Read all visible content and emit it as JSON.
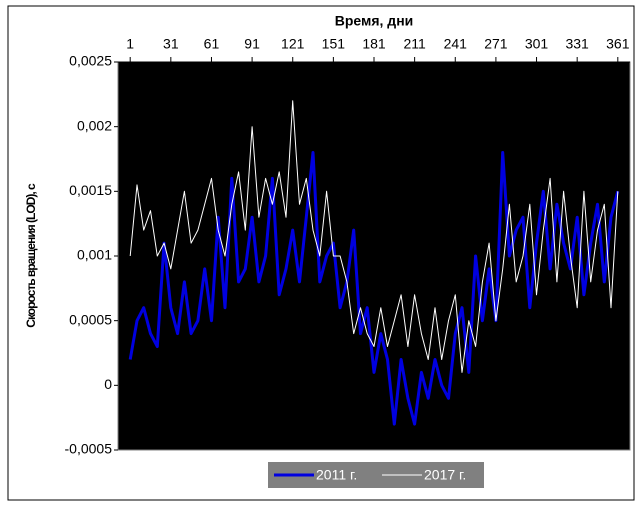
{
  "chart_data": {
    "type": "line",
    "x_label": "Время, дни",
    "y_label": "Скорость вращения (LOD), с",
    "x": [
      1,
      6,
      11,
      16,
      21,
      26,
      31,
      36,
      41,
      46,
      51,
      56,
      61,
      66,
      71,
      76,
      81,
      86,
      91,
      96,
      101,
      106,
      111,
      116,
      121,
      126,
      131,
      136,
      141,
      146,
      151,
      156,
      161,
      166,
      171,
      176,
      181,
      186,
      191,
      196,
      201,
      206,
      211,
      216,
      221,
      226,
      231,
      236,
      241,
      246,
      251,
      256,
      261,
      266,
      271,
      276,
      281,
      286,
      291,
      296,
      301,
      306,
      311,
      316,
      321,
      326,
      331,
      336,
      341,
      346,
      351,
      356,
      361
    ],
    "series": [
      {
        "name": "2011 г.",
        "color": "#0000e0",
        "values": [
          0.0002,
          0.0005,
          0.0006,
          0.0004,
          0.0003,
          0.0011,
          0.0006,
          0.0004,
          0.0008,
          0.0004,
          0.0005,
          0.0009,
          0.0005,
          0.0013,
          0.0006,
          0.0016,
          0.0008,
          0.0009,
          0.0013,
          0.0008,
          0.001,
          0.0016,
          0.0007,
          0.0009,
          0.0012,
          0.0008,
          0.0013,
          0.0018,
          0.0008,
          0.001,
          0.0011,
          0.0006,
          0.0008,
          0.0012,
          0.0004,
          0.0006,
          0.0001,
          0.0004,
          0.0002,
          -0.0003,
          0.0002,
          -0.0001,
          -0.0003,
          0.0001,
          -0.0001,
          0.0002,
          0,
          -0.0001,
          0.0004,
          0.0006,
          0.0001,
          0.001,
          0.0005,
          0.0009,
          0.0005,
          0.0018,
          0.001,
          0.0012,
          0.0013,
          0.0006,
          0.0011,
          0.0015,
          0.0009,
          0.0014,
          0.0011,
          0.0009,
          0.0013,
          0.0007,
          0.0011,
          0.0014,
          0.0008,
          0.0013,
          0.0015
        ]
      },
      {
        "name": "2017 г.",
        "color": "#ffffff",
        "values": [
          0.001,
          0.00155,
          0.0012,
          0.00135,
          0.001,
          0.0011,
          0.0009,
          0.0012,
          0.0015,
          0.0011,
          0.0012,
          0.0014,
          0.0016,
          0.0012,
          0.001,
          0.0014,
          0.00165,
          0.0012,
          0.002,
          0.0013,
          0.0016,
          0.0014,
          0.00165,
          0.0013,
          0.0022,
          0.0014,
          0.0016,
          0.0012,
          0.001,
          0.0015,
          0.001,
          0.001,
          0.0008,
          0.0004,
          0.0006,
          0.0004,
          0.0003,
          0.0006,
          0.0003,
          0.0005,
          0.0007,
          0.0003,
          0.0007,
          0.0004,
          0.0002,
          0.0006,
          0.0002,
          0.0005,
          0.0007,
          0.0001,
          0.0005,
          0.0003,
          0.0008,
          0.0011,
          0.0005,
          0.0009,
          0.0014,
          0.0008,
          0.001,
          0.0014,
          0.0007,
          0.0012,
          0.0016,
          0.0008,
          0.0015,
          0.001,
          0.0006,
          0.0015,
          0.0008,
          0.0012,
          0.0014,
          0.0006,
          0.0015
        ]
      }
    ],
    "xlim": [
      -8,
      370
    ],
    "xticks": [
      1,
      31,
      61,
      91,
      121,
      151,
      181,
      211,
      241,
      271,
      301,
      331,
      361
    ],
    "ylim": [
      -0.0005,
      0.0025
    ],
    "yticks": [
      {
        "value": -0.0005,
        "label": "-0,0005"
      },
      0,
      {
        "value": 0.0005,
        "label": "0,0005"
      },
      {
        "value": 0.001,
        "label": "0,001"
      },
      {
        "value": 0.0015,
        "label": "0,0015"
      },
      {
        "value": 0.002,
        "label": "0,002"
      },
      {
        "value": 0.0025,
        "label": "0,0025"
      }
    ],
    "plot_background": "#000000",
    "legend_position": "bottom"
  }
}
